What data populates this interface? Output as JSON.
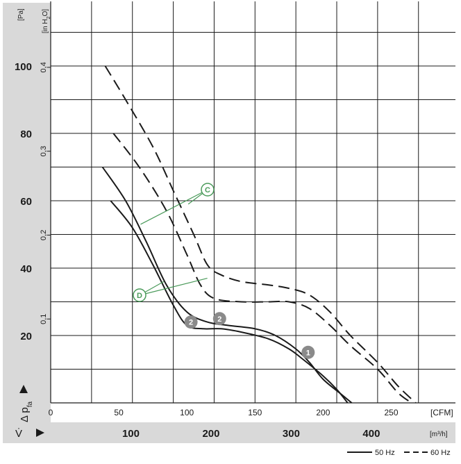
{
  "chart_data": {
    "type": "line",
    "title": "",
    "y_axis": {
      "label": "[Pa]",
      "ticks": [
        20,
        40,
        60,
        80,
        100
      ],
      "range": [
        0,
        115
      ]
    },
    "y2_axis": {
      "label": "[in H2O]",
      "label_main": "[in H",
      "label_sub": "2",
      "label_end": "O]",
      "ticks": [
        "0,1",
        "0,2",
        "0,3",
        "0,4"
      ],
      "tick_values_pa": [
        24.9,
        49.8,
        74.7,
        99.6
      ]
    },
    "x_axis": {
      "label": "[CFM]",
      "ticks": [
        0,
        50,
        100,
        150,
        200,
        250
      ],
      "range": [
        0,
        295
      ]
    },
    "x2_axis": {
      "label": "[m³/h]",
      "ticks": [
        100,
        200,
        300,
        400
      ]
    },
    "axis_symbols": {
      "y": "Δ p",
      "y_sub": "fa",
      "x": "V̇"
    },
    "legend": {
      "items": [
        {
          "label": "50 Hz",
          "style": "solid"
        },
        {
          "label": "60 Hz",
          "style": "dashed"
        }
      ],
      "placement": "bottom-right"
    },
    "grid": true,
    "series": [
      {
        "name": "50 Hz",
        "curve": "2",
        "style": "solid",
        "x": [
          44,
          60,
          75,
          90,
          100,
          112,
          125,
          140,
          160,
          175,
          185,
          200,
          210,
          218
        ],
        "y": [
          60,
          52,
          41,
          29,
          23,
          22,
          22,
          21,
          19,
          16,
          13,
          8,
          4,
          0
        ]
      },
      {
        "name": "50 Hz",
        "curve": "1",
        "style": "solid",
        "x": [
          38,
          55,
          70,
          85,
          100,
          115,
          130,
          150,
          165,
          180,
          190,
          200,
          212,
          221
        ],
        "y": [
          70,
          60,
          48,
          35,
          27,
          24,
          23,
          22,
          20,
          16,
          12,
          7,
          3,
          0
        ]
      },
      {
        "name": "60 Hz",
        "curve": "D",
        "style": "dashed",
        "x": [
          46,
          65,
          85,
          100,
          110,
          120,
          140,
          160,
          175,
          190,
          205,
          220,
          240,
          255,
          265
        ],
        "y": [
          80,
          70,
          57,
          44,
          35,
          31,
          30,
          30,
          30,
          28,
          23,
          17,
          10,
          3,
          0
        ]
      },
      {
        "name": "60 Hz",
        "curve": "C",
        "style": "dashed",
        "x": [
          40,
          55,
          75,
          90,
          105,
          115,
          125,
          140,
          160,
          175,
          190,
          205,
          220,
          240,
          255,
          268
        ],
        "y": [
          100,
          90,
          76,
          63,
          50,
          41,
          38,
          36,
          35,
          34,
          32,
          27,
          20,
          12,
          5,
          0
        ]
      }
    ],
    "markers": [
      {
        "label": "2",
        "x": 103,
        "y": 24
      },
      {
        "label": "2",
        "x": 124,
        "y": 25
      },
      {
        "label": "1",
        "x": 189,
        "y": 15
      }
    ],
    "annotations": [
      {
        "label": "C"
      },
      {
        "label": "D"
      }
    ]
  }
}
